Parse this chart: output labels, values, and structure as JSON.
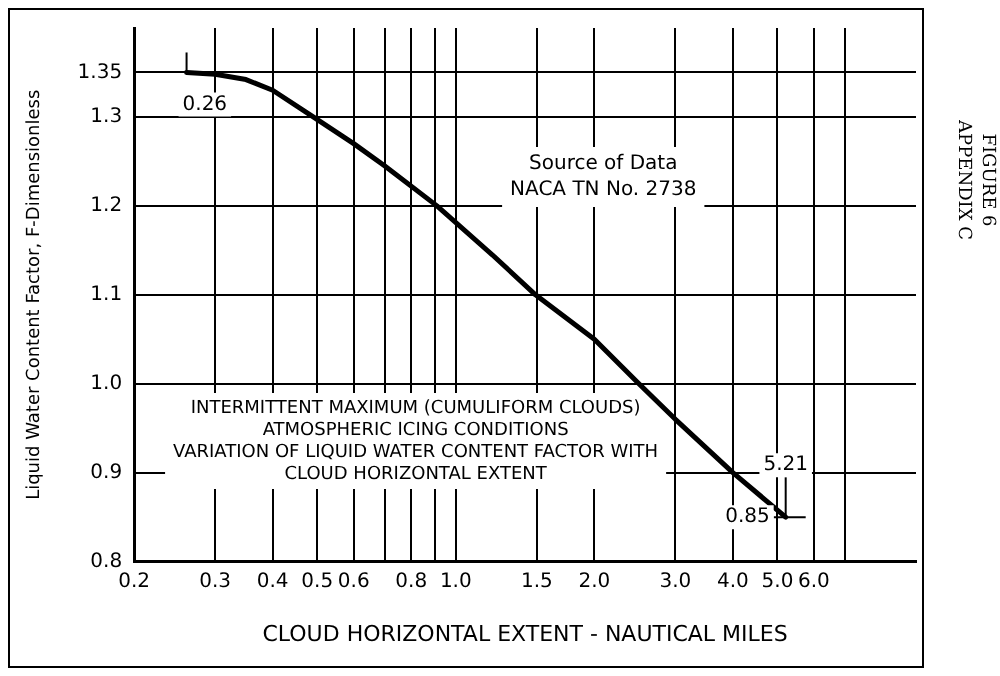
{
  "chart_data": {
    "type": "line",
    "xlabel": "CLOUD HORIZONTAL EXTENT - NAUTICAL MILES",
    "ylabel": "Liquid Water Content Factor, F-Dimensionless",
    "log": "x",
    "grid": true,
    "legend": false,
    "marker": "none",
    "line_style": "solid",
    "xlim": [
      0.2,
      10
    ],
    "xticks": [
      0.2,
      0.3,
      0.4,
      0.5,
      0.6,
      {
        "value": 0.7,
        "label": null
      },
      0.8,
      {
        "value": 0.9,
        "label": null
      },
      {
        "value": 1,
        "label": "1.0"
      },
      1.5,
      {
        "value": 2,
        "label": "2.0"
      },
      {
        "value": 3,
        "label": "3.0"
      },
      {
        "value": 4,
        "label": "4.0"
      },
      {
        "value": 5,
        "label": "5.0"
      },
      {
        "value": 6,
        "label": "6.0"
      },
      {
        "value": 7,
        "label": null
      }
    ],
    "ylim": [
      0.8,
      1.4
    ],
    "yticks": [
      0.8,
      0.9,
      {
        "value": 1,
        "label": "1.0"
      },
      1.1,
      1.2,
      1.3,
      1.35
    ],
    "series": [
      {
        "color": "#000000",
        "x": [
          0.26,
          0.3,
          0.35,
          0.4,
          0.49,
          0.6,
          0.7,
          0.91,
          1.2,
          1.49,
          2.0,
          2.5,
          3.0,
          4.0,
          5.21
        ],
        "values": [
          1.35,
          1.348,
          1.342,
          1.33,
          1.3,
          1.27,
          1.245,
          1.2,
          1.145,
          1.1,
          1.05,
          1.0,
          0.96,
          0.9,
          0.85
        ]
      }
    ],
    "annotations": [
      "0.26",
      "5.21",
      "0.85",
      "Source of Data\nNACA TN No. 2738",
      "INTERMITTENT MAXIMUM (CUMULIFORM CLOUDS)\nATMOSPHERIC ICING CONDITIONS\nVARIATION OF LIQUID WATER CONTENT FACTOR WITH\nCLOUD HORIZONTAL EXTENT",
      "APPENDIX C\nFIGURE 6"
    ]
  }
}
